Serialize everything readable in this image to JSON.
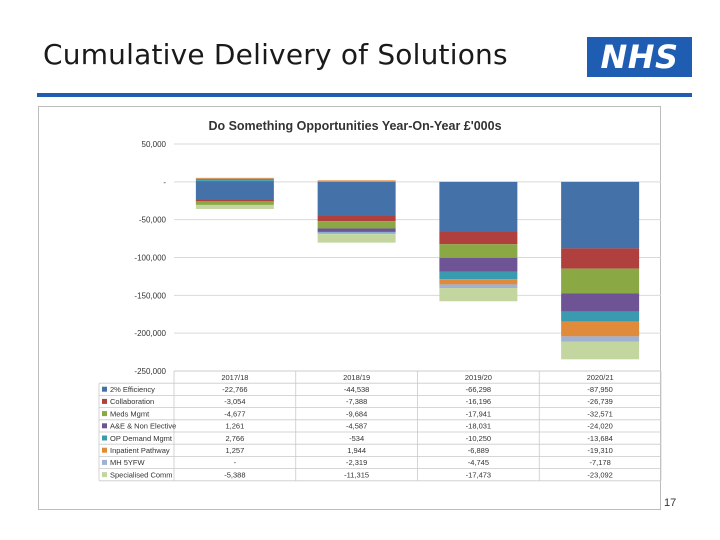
{
  "slide": {
    "title": "Cumulative Delivery of Solutions",
    "logo_text": "NHS",
    "page_number": "17"
  },
  "colors": {
    "brand_blue": "#1f5db3"
  },
  "chart_data": {
    "type": "bar",
    "stacked": true,
    "title": "Do Something Opportunities Year-On-Year £'000s",
    "xlabel": "",
    "ylabel": "",
    "ylim": [
      -250000,
      50000
    ],
    "y_ticks": [
      50000,
      0,
      -50000,
      -100000,
      -150000,
      -200000,
      -250000
    ],
    "y_tick_labels": [
      "50,000",
      "-",
      "-50,000",
      "-100,000",
      "-150,000",
      "-200,000",
      "-250,000"
    ],
    "grid": true,
    "legend_placement": "data-table",
    "categories": [
      "2017/18",
      "2018/19",
      "2019/20",
      "2020/21"
    ],
    "series": [
      {
        "name": "2% Efficiency",
        "color": "#4472a8",
        "values": [
          -22766,
          -44538,
          -66298,
          -87950
        ],
        "labels": [
          "-22,766",
          "-44,538",
          "-66,298",
          "-87,950"
        ]
      },
      {
        "name": "Collaboration",
        "color": "#b0403e",
        "values": [
          -3054,
          -7388,
          -16196,
          -26739
        ],
        "labels": [
          "-3,054",
          "-7,388",
          "-16,196",
          "-26,739"
        ]
      },
      {
        "name": "Meds Mgmt",
        "color": "#8aa843",
        "values": [
          -4677,
          -9684,
          -17941,
          -32571
        ],
        "labels": [
          "-4,677",
          "-9,684",
          "-17,941",
          "-32,571"
        ]
      },
      {
        "name": "A&E & Non Elective",
        "color": "#6f5495",
        "values": [
          1261,
          -4587,
          -18031,
          -24020
        ],
        "labels": [
          "1,261",
          "-4,587",
          "-18,031",
          "-24,020"
        ]
      },
      {
        "name": "OP Demand Mgmt",
        "color": "#3a9bb0",
        "values": [
          2766,
          -534,
          -10250,
          -13684
        ],
        "labels": [
          "2,766",
          "-534",
          "-10,250",
          "-13,684"
        ]
      },
      {
        "name": "Inpatient Pathway",
        "color": "#e08a3c",
        "values": [
          1257,
          1944,
          -6889,
          -19310
        ],
        "labels": [
          "1,257",
          "1,944",
          "-6,889",
          "-19,310"
        ]
      },
      {
        "name": "MH 5YFW",
        "color": "#9fb2d6",
        "values": [
          0,
          -2319,
          -4745,
          -7178
        ],
        "labels": [
          "-",
          "-2,319",
          "-4,745",
          "-7,178"
        ]
      },
      {
        "name": "Specialised Comm",
        "color": "#c4d6a0",
        "values": [
          -5388,
          -11315,
          -17473,
          -23092
        ],
        "labels": [
          "-5,388",
          "-11,315",
          "-17,473",
          "-23,092"
        ]
      }
    ]
  }
}
